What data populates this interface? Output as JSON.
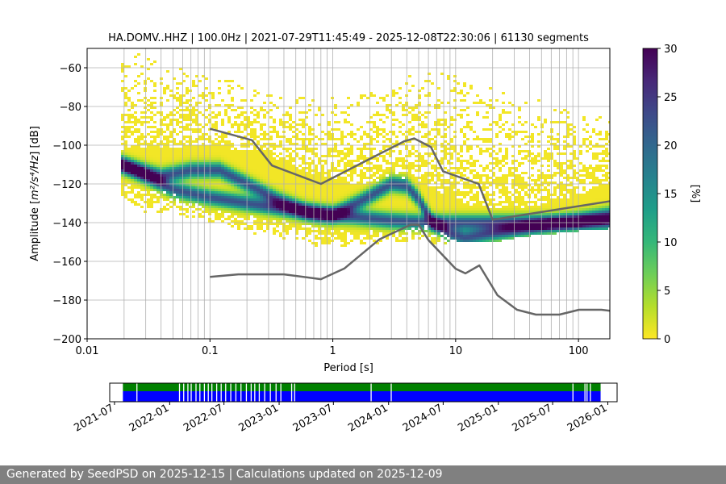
{
  "chart_data": [
    {
      "type": "heatmap",
      "title": "HA.DOMV..HHZ | 100.0Hz | 2021-07-29T11:45:49 - 2025-12-08T22:30:06 | 61130 segments",
      "xlabel": "Period [s]",
      "ylabel_main": "Amplitude [",
      "ylabel_units": "m²/s⁴/Hz",
      "ylabel_end": "] [dB]",
      "xscale": "log",
      "xlim": [
        0.01,
        180
      ],
      "ylim": [
        -200,
        -50
      ],
      "grid": true,
      "x_ticks": [
        {
          "value": 0.01,
          "label": "0.01"
        },
        {
          "value": 0.1,
          "label": "0.1"
        },
        {
          "value": 1,
          "label": "1"
        },
        {
          "value": 10,
          "label": "10"
        },
        {
          "value": 100,
          "label": "100"
        }
      ],
      "y_ticks": [
        {
          "value": -60,
          "label": "−60"
        },
        {
          "value": -80,
          "label": "−80"
        },
        {
          "value": -100,
          "label": "−100"
        },
        {
          "value": -120,
          "label": "−120"
        },
        {
          "value": -140,
          "label": "−140"
        },
        {
          "value": -160,
          "label": "−160"
        },
        {
          "value": -180,
          "label": "−180"
        },
        {
          "value": -200,
          "label": "−200"
        }
      ],
      "period_gridlines": [
        0.02,
        0.03,
        0.04,
        0.05,
        0.06,
        0.07,
        0.08,
        0.09,
        0.1,
        0.2,
        0.3,
        0.4,
        0.5,
        0.6,
        0.7,
        0.8,
        0.9,
        1,
        2,
        3,
        4,
        5,
        6,
        7,
        8,
        9,
        10,
        20,
        30,
        40,
        50,
        60,
        70,
        80,
        90,
        100
      ],
      "colorbar": {
        "label": "[%]",
        "range": [
          0,
          30
        ],
        "ticks": [
          {
            "value": 0,
            "label": "0"
          },
          {
            "value": 5,
            "label": "5"
          },
          {
            "value": 10,
            "label": "10"
          },
          {
            "value": 15,
            "label": "15"
          },
          {
            "value": 20,
            "label": "20"
          },
          {
            "value": 25,
            "label": "25"
          },
          {
            "value": 30,
            "label": "30"
          }
        ],
        "colormap": [
          "#fde725",
          "#b5de2b",
          "#6ece58",
          "#35b779",
          "#1f9e89",
          "#26828e",
          "#31688e",
          "#3e4989",
          "#482878",
          "#440154"
        ]
      },
      "density_envelope": {
        "periods": [
          0.019,
          0.03,
          0.05,
          0.1,
          0.2,
          0.5,
          0.8,
          1.5,
          3,
          5,
          8,
          12,
          20,
          40,
          80,
          180
        ],
        "upper_db": [
          -52,
          -52,
          -58,
          -62,
          -70,
          -72,
          -75,
          -75,
          -70,
          -60,
          -60,
          -65,
          -70,
          -75,
          -80,
          -85
        ],
        "lower_db": [
          -128,
          -135,
          -135,
          -140,
          -145,
          -150,
          -153,
          -152,
          -150,
          -150,
          -152,
          -150,
          -150,
          -147,
          -145,
          -143
        ]
      },
      "solid_band": {
        "periods": [
          0.019,
          0.1,
          0.3,
          0.7,
          1.5,
          3,
          5,
          8,
          12,
          20,
          40,
          80,
          180
        ],
        "top_db": [
          -102,
          -100,
          -105,
          -115,
          -120,
          -118,
          -118,
          -125,
          -130,
          -133,
          -132,
          -128,
          -120
        ],
        "bottom_db": [
          -118,
          -130,
          -138,
          -142,
          -145,
          -143,
          -140,
          -145,
          -150,
          -150,
          -148,
          -145,
          -143
        ]
      },
      "mode_ridges": [
        {
          "name": "mode-upper",
          "periods": [
            0.019,
            0.04,
            0.07,
            0.12,
            0.2,
            0.35,
            0.6,
            1,
            1.8,
            3,
            4,
            5,
            6.5,
            9,
            12,
            18,
            30,
            60,
            100,
            180
          ],
          "db": [
            -110,
            -116,
            -113,
            -113,
            -120,
            -128,
            -134,
            -136,
            -128,
            -120,
            -121,
            -128,
            -140,
            -146,
            -148,
            -146,
            -144,
            -141,
            -139,
            -136
          ]
        },
        {
          "name": "mode-lower",
          "periods": [
            0.019,
            0.05,
            0.1,
            0.2,
            0.4,
            0.8,
            1.5,
            3,
            6
          ],
          "db": [
            -110,
            -123,
            -127,
            -130,
            -133,
            -136,
            -137,
            -139,
            -140
          ]
        }
      ],
      "series": [
        {
          "name": "NHNM",
          "periods": [
            0.1,
            0.22,
            0.32,
            0.8,
            3.8,
            4.6,
            6.3,
            7.9,
            15.4,
            20,
            354.8
          ],
          "db": [
            -91.5,
            -97.4,
            -110.5,
            -120,
            -98,
            -96.5,
            -101,
            -113.5,
            -120,
            -138.5,
            -126
          ]
        },
        {
          "name": "NLNM",
          "periods": [
            0.1,
            0.17,
            0.4,
            0.8,
            1.24,
            2.4,
            4.3,
            5,
            6,
            10,
            12,
            15.6,
            21.9,
            31.6,
            45,
            70,
            101,
            154,
            328
          ],
          "db": [
            -168,
            -166.7,
            -166.7,
            -169.2,
            -163.7,
            -148.6,
            -141.1,
            -141.1,
            -149,
            -163.8,
            -166.2,
            -162.1,
            -177.5,
            -185,
            -187.5,
            -187.5,
            -185,
            -185,
            -187.5
          ]
        }
      ]
    },
    {
      "type": "timeline",
      "name": "data-availability",
      "x_ticks": [
        "2021-07",
        "2022-01",
        "2022-07",
        "2023-01",
        "2023-07",
        "2024-01",
        "2024-07",
        "2025-01",
        "2025-07",
        "2026-01"
      ],
      "xlim": [
        "2021-06-15",
        "2026-02-01"
      ],
      "colors": {
        "available": "#0000ff",
        "processed": "#008000",
        "gap": "#ffffff"
      },
      "coverage": {
        "start": "2021-07-29",
        "end": "2025-12-08"
      },
      "gaps": [
        "2021-09-12",
        "2022-02-01",
        "2022-02-15",
        "2022-03-01",
        "2022-03-12",
        "2022-03-28",
        "2022-04-10",
        "2022-04-25",
        "2022-05-08",
        "2022-05-20",
        "2022-06-05",
        "2022-06-20",
        "2022-07-05",
        "2022-07-22",
        "2022-08-08",
        "2022-08-25",
        "2022-09-12",
        "2022-09-28",
        "2022-10-10",
        "2022-10-25",
        "2022-11-12",
        "2022-12-01",
        "2022-12-20",
        "2023-01-05",
        "2023-02-10",
        "2023-02-20",
        "2023-11-02",
        "2024-01-08",
        "2025-09-05",
        "2025-10-15",
        "2025-10-22",
        "2025-11-02"
      ]
    }
  ],
  "footer": {
    "text": "Generated by SeedPSD on 2025-12-15 | Calculations updated on 2025-12-09"
  }
}
